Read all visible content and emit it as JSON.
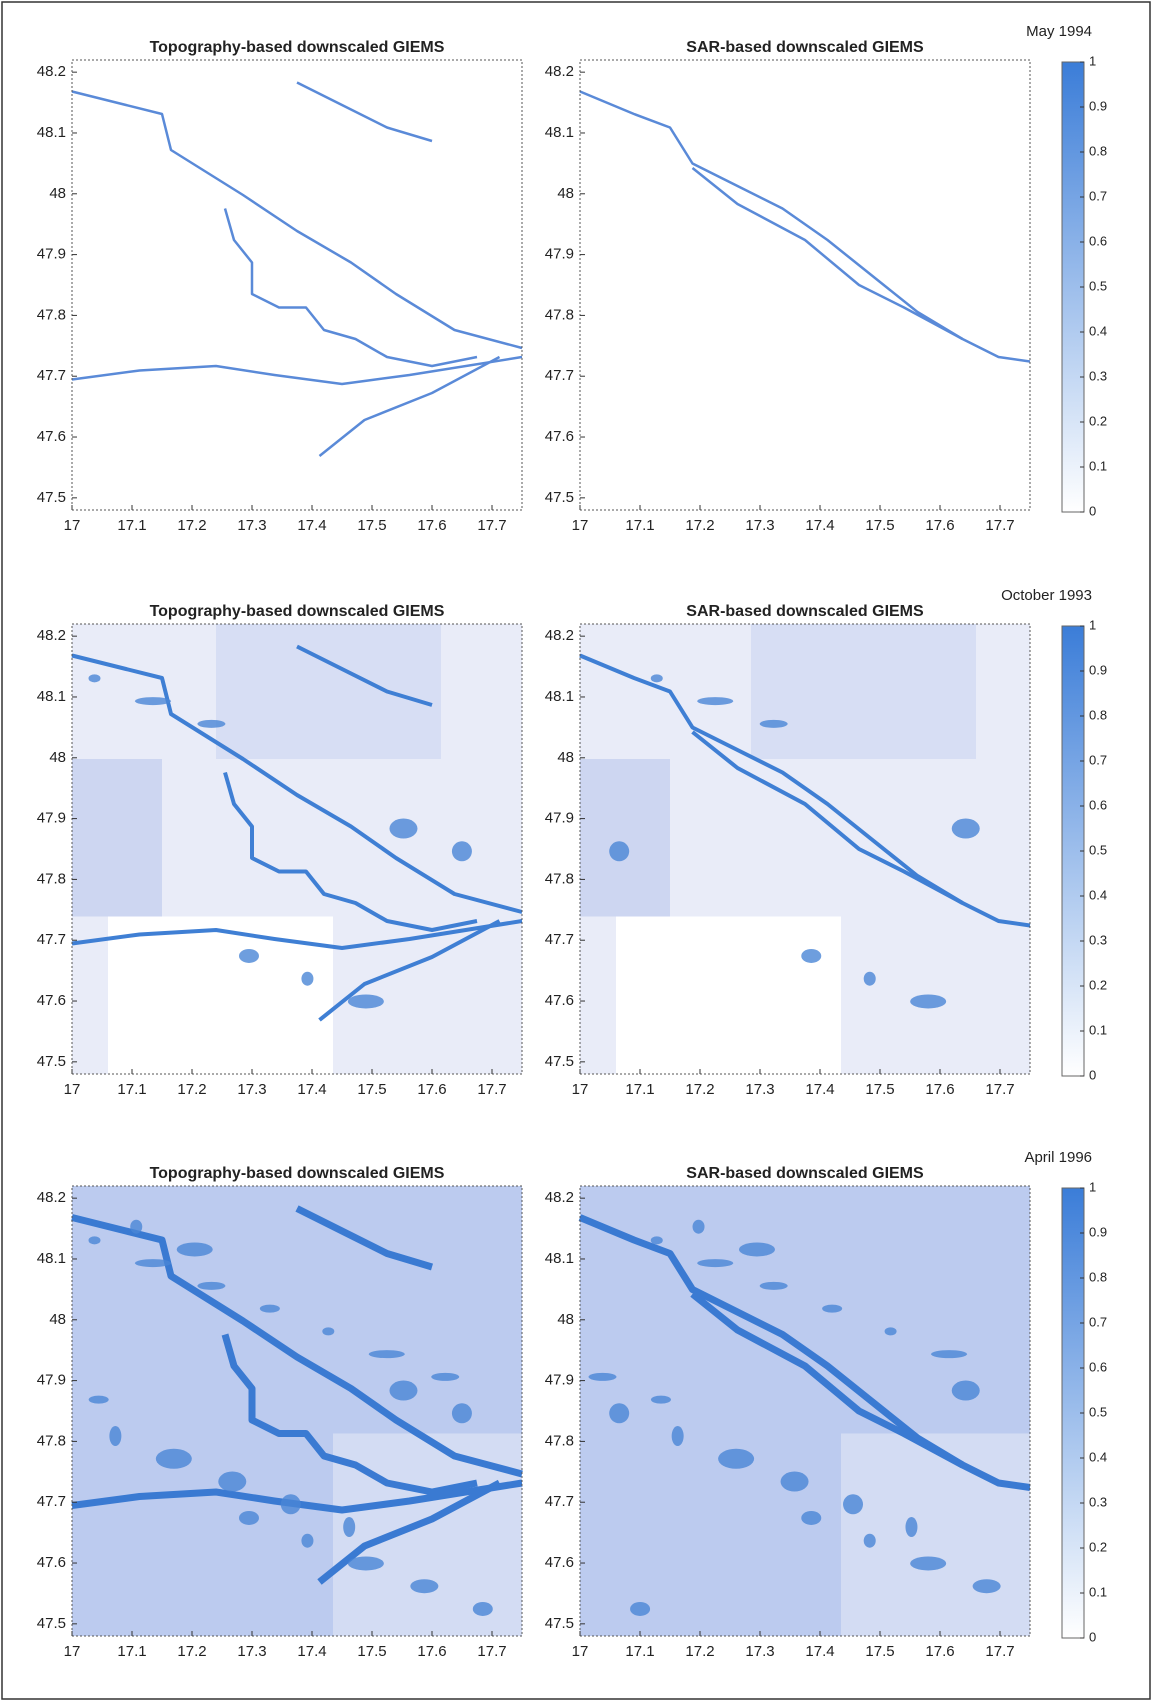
{
  "chart_data": [
    {
      "type": "heatmap",
      "title": "Topography-based downscaled GIEMS",
      "xlim": [
        17,
        17.75
      ],
      "ylim": [
        47.48,
        48.22
      ],
      "xticks": [
        17,
        17.1,
        17.2,
        17.3,
        17.4,
        17.5,
        17.6,
        17.7
      ],
      "yticks": [
        47.5,
        47.6,
        47.7,
        47.8,
        47.9,
        48,
        48.1,
        48.2
      ]
    },
    {
      "type": "heatmap",
      "title": "SAR-based downscaled GIEMS",
      "xlim": [
        17,
        17.75
      ],
      "ylim": [
        47.48,
        48.22
      ],
      "xticks": [
        17,
        17.1,
        17.2,
        17.3,
        17.4,
        17.5,
        17.6,
        17.7
      ],
      "yticks": [
        47.5,
        47.6,
        47.7,
        47.8,
        47.9,
        48,
        48.1,
        48.2
      ],
      "colorbar": {
        "label": "May 1994",
        "lim": [
          0,
          1
        ],
        "ticks": [
          0,
          0.1,
          0.2,
          0.3,
          0.4,
          0.5,
          0.6,
          0.7,
          0.8,
          0.9,
          1
        ],
        "colors": [
          "#ffffff",
          "#3b7dd8"
        ]
      }
    },
    {
      "type": "heatmap",
      "title": "Topography-based downscaled GIEMS",
      "xlim": [
        17,
        17.75
      ],
      "ylim": [
        47.48,
        48.22
      ],
      "xticks": [
        17,
        17.1,
        17.2,
        17.3,
        17.4,
        17.5,
        17.6,
        17.7
      ],
      "yticks": [
        47.5,
        47.6,
        47.7,
        47.8,
        47.9,
        48,
        48.1,
        48.2
      ]
    },
    {
      "type": "heatmap",
      "title": "SAR-based downscaled GIEMS",
      "xlim": [
        17,
        17.75
      ],
      "ylim": [
        47.48,
        48.22
      ],
      "xticks": [
        17,
        17.1,
        17.2,
        17.3,
        17.4,
        17.5,
        17.6,
        17.7
      ],
      "yticks": [
        47.5,
        47.6,
        47.7,
        47.8,
        47.9,
        48,
        48.1,
        48.2
      ],
      "colorbar": {
        "label": "October 1993",
        "lim": [
          0,
          1
        ],
        "ticks": [
          0,
          0.1,
          0.2,
          0.3,
          0.4,
          0.5,
          0.6,
          0.7,
          0.8,
          0.9,
          1
        ],
        "colors": [
          "#ffffff",
          "#3b7dd8"
        ]
      }
    },
    {
      "type": "heatmap",
      "title": "Topography-based downscaled GIEMS",
      "xlim": [
        17,
        17.75
      ],
      "ylim": [
        47.48,
        48.22
      ],
      "xticks": [
        17,
        17.1,
        17.2,
        17.3,
        17.4,
        17.5,
        17.6,
        17.7
      ],
      "yticks": [
        47.5,
        47.6,
        47.7,
        47.8,
        47.9,
        48,
        48.1,
        48.2
      ]
    },
    {
      "type": "heatmap",
      "title": "SAR-based downscaled GIEMS",
      "xlim": [
        17,
        17.75
      ],
      "ylim": [
        47.48,
        48.22
      ],
      "xticks": [
        17,
        17.1,
        17.2,
        17.3,
        17.4,
        17.5,
        17.6,
        17.7
      ],
      "yticks": [
        47.5,
        47.6,
        47.7,
        47.8,
        47.9,
        48,
        48.1,
        48.2
      ],
      "colorbar": {
        "label": "April 1996",
        "lim": [
          0,
          1
        ],
        "ticks": [
          0,
          0.1,
          0.2,
          0.3,
          0.4,
          0.5,
          0.6,
          0.7,
          0.8,
          0.9,
          1
        ],
        "colors": [
          "#ffffff",
          "#3b7dd8"
        ]
      }
    }
  ]
}
